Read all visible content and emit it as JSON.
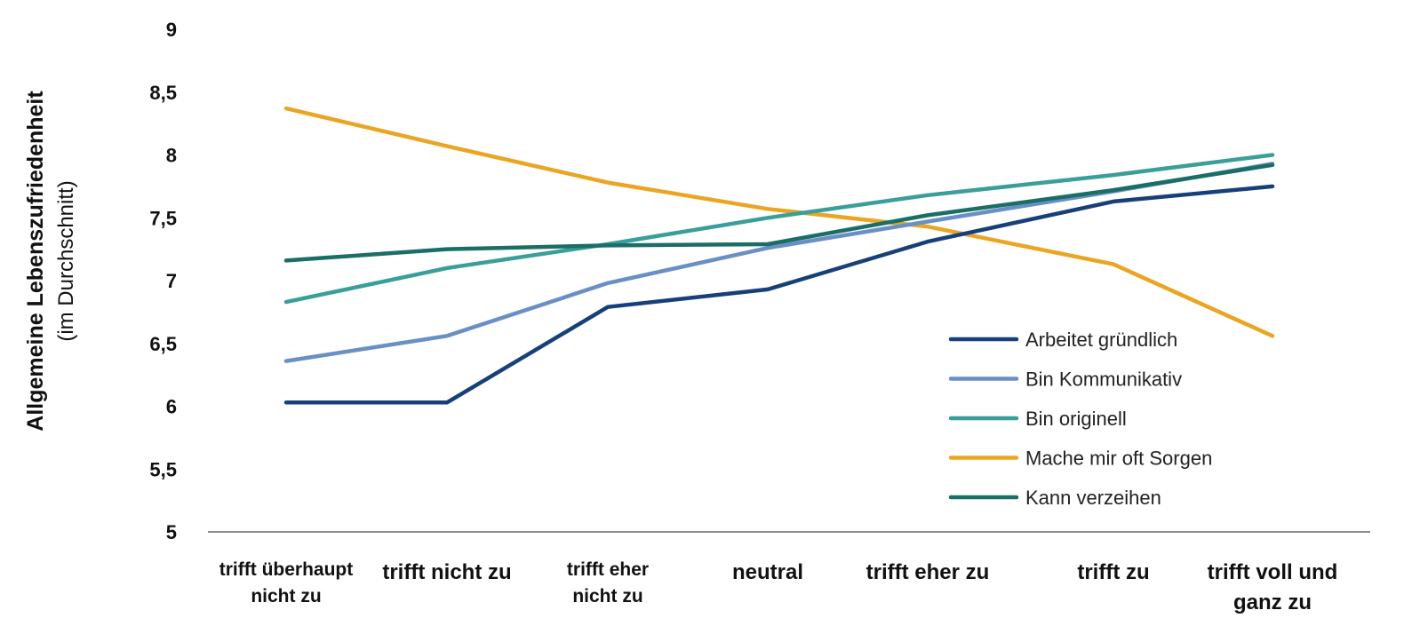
{
  "chart_data": {
    "type": "line",
    "ylabel": "Allgemeine Lebenszufriedenheit",
    "ylabel_sub": "(im Durchschnitt)",
    "ylim": [
      5,
      9
    ],
    "yticks": [
      "5",
      "5,5",
      "6",
      "6,5",
      "7",
      "7,5",
      "8",
      "8,5",
      "9"
    ],
    "categories": [
      [
        "trifft überhaupt",
        "nicht zu"
      ],
      [
        "trifft nicht zu"
      ],
      [
        "trifft eher",
        "nicht zu"
      ],
      [
        "neutral"
      ],
      [
        "trifft eher zu"
      ],
      [
        "trifft zu"
      ],
      [
        "trifft voll und",
        "ganz zu"
      ]
    ],
    "legend_position": "bottom-right",
    "series": [
      {
        "name": "Arbeitet gründlich",
        "color": "#17407a",
        "values": [
          6.03,
          6.03,
          6.79,
          6.93,
          7.31,
          7.63,
          7.75
        ]
      },
      {
        "name": "Bin Kommunikativ",
        "color": "#6a8fc4",
        "values": [
          6.36,
          6.56,
          6.98,
          7.26,
          7.47,
          7.71,
          7.93
        ]
      },
      {
        "name": "Bin originell",
        "color": "#3a9e9a",
        "values": [
          6.83,
          7.1,
          7.29,
          7.5,
          7.68,
          7.84,
          8.0
        ]
      },
      {
        "name": "Mache mir oft Sorgen",
        "color": "#eaa522",
        "values": [
          8.37,
          8.07,
          7.78,
          7.57,
          7.43,
          7.13,
          6.56
        ]
      },
      {
        "name": "Kann verzeihen",
        "color": "#1a6e66",
        "values": [
          7.16,
          7.25,
          7.28,
          7.29,
          7.52,
          7.72,
          7.92
        ]
      }
    ]
  }
}
